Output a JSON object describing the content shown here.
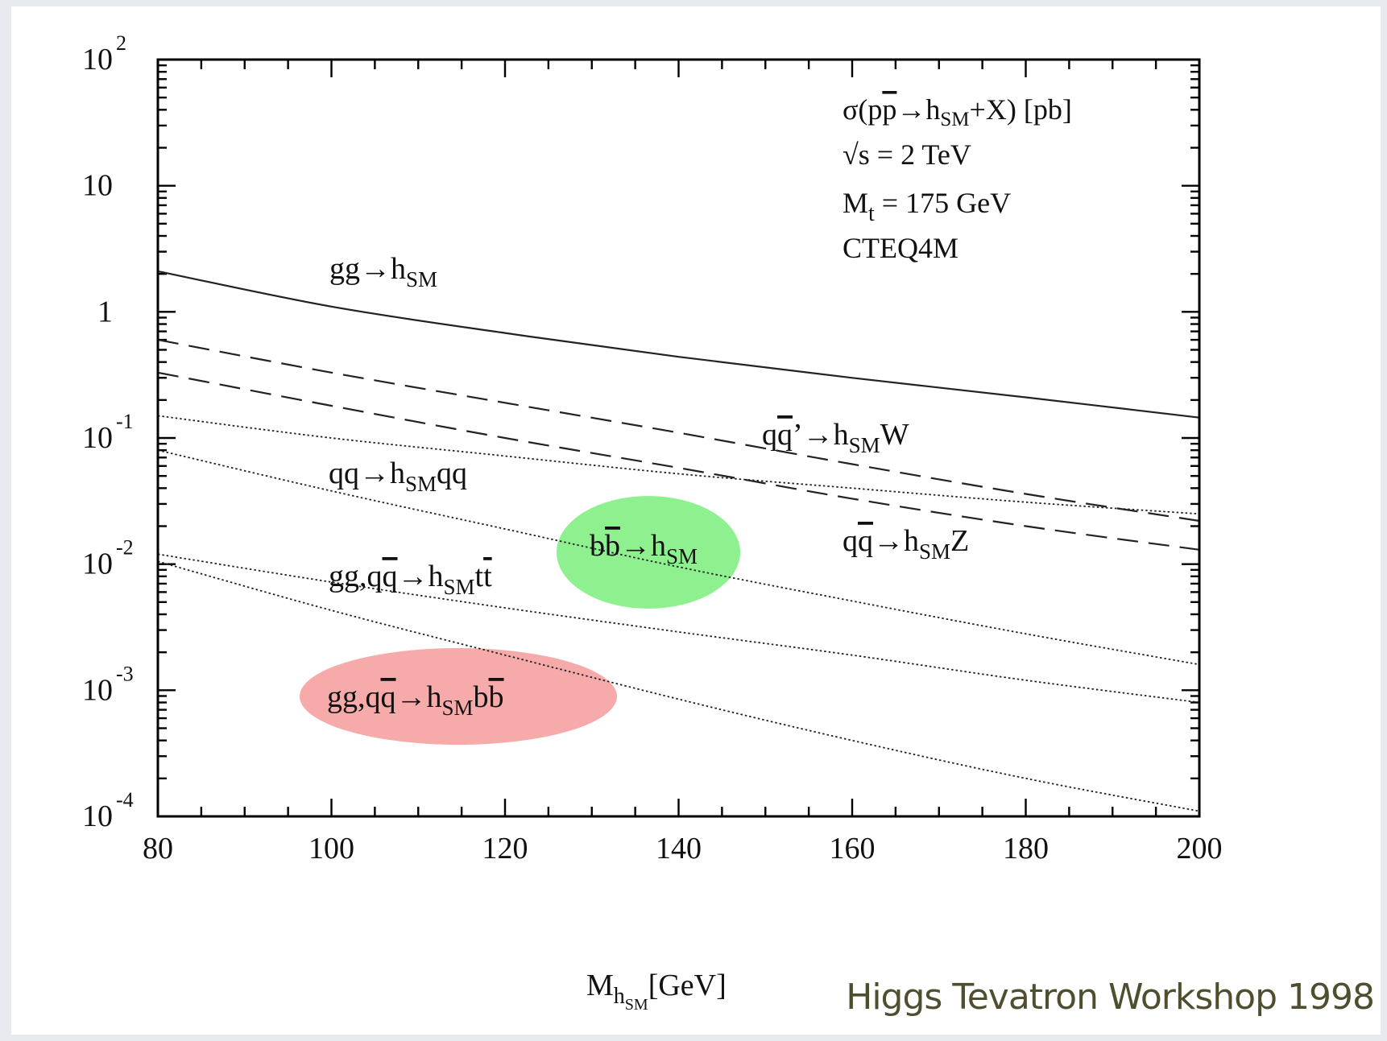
{
  "chart_data": {
    "type": "line",
    "xlim": [
      80,
      200
    ],
    "ylim": [
      0.0001,
      100
    ],
    "yscale": "log",
    "xticks": [
      "80",
      "100",
      "120",
      "140",
      "160",
      "180",
      "200"
    ],
    "yticks": [
      {
        "value": 100,
        "base": "10",
        "exp": "2"
      },
      {
        "value": 10,
        "base": "10",
        "exp": ""
      },
      {
        "value": 1,
        "base": "1",
        "exp": ""
      },
      {
        "value": 0.1,
        "base": "10",
        "exp": "-1"
      },
      {
        "value": 0.01,
        "base": "10",
        "exp": "-2"
      },
      {
        "value": 0.001,
        "base": "10",
        "exp": "-3"
      },
      {
        "value": 0.0001,
        "base": "10",
        "exp": "-4"
      }
    ],
    "xlabel": {
      "main": "M",
      "sub": "h",
      "subsub": "SM",
      "unit": "[GeV]"
    },
    "info": [
      "σ(pp̄→h_SM+X) [pb]",
      "√s = 2 TeV",
      "M_t = 175 GeV",
      "CTEQ4M"
    ],
    "series": [
      {
        "name": "gg→h_SM",
        "style": "solid",
        "x": [
          80,
          100,
          120,
          140,
          160,
          180,
          200
        ],
        "y": [
          2.1,
          1.1,
          0.68,
          0.44,
          0.3,
          0.21,
          0.145
        ]
      },
      {
        "name": "qq̄’→h_SM W",
        "style": "dashed",
        "x": [
          80,
          100,
          120,
          140,
          160,
          180,
          200
        ],
        "y": [
          0.6,
          0.33,
          0.19,
          0.11,
          0.062,
          0.036,
          0.022
        ]
      },
      {
        "name": "qq̄→h_SM Z",
        "style": "dashed",
        "x": [
          80,
          100,
          120,
          140,
          160,
          180,
          200
        ],
        "y": [
          0.33,
          0.18,
          0.1,
          0.058,
          0.033,
          0.02,
          0.013
        ]
      },
      {
        "name": "qq→h_SM qq",
        "style": "dotted",
        "x": [
          80,
          100,
          120,
          140,
          160,
          180,
          200
        ],
        "y": [
          0.15,
          0.1,
          0.072,
          0.052,
          0.04,
          0.031,
          0.025
        ]
      },
      {
        "name": "bb̄→h_SM",
        "style": "dotted",
        "x": [
          80,
          100,
          120,
          140,
          160,
          180,
          200
        ],
        "y": [
          0.08,
          0.038,
          0.019,
          0.0095,
          0.0051,
          0.0028,
          0.0016
        ]
      },
      {
        "name": "gg,qq̄→h_SM tt̄",
        "style": "dotted",
        "x": [
          80,
          100,
          120,
          140,
          160,
          180,
          200
        ],
        "y": [
          0.012,
          0.0072,
          0.0045,
          0.0029,
          0.0019,
          0.0012,
          0.0008
        ]
      },
      {
        "name": "gg,qq̄→h_SM bb̄",
        "style": "dotted",
        "x": [
          80,
          100,
          120,
          140,
          160,
          180,
          200
        ],
        "y": [
          0.0105,
          0.0043,
          0.0019,
          0.00085,
          0.0004,
          0.0002,
          0.00011
        ]
      }
    ],
    "highlights": [
      {
        "series": "bb̄→h_SM",
        "color": "#8ff08f"
      },
      {
        "series": "gg,qq̄→h_SM bb̄",
        "color": "#f6aaaa"
      }
    ]
  },
  "credit": "Higgs Tevatron Workshop 1998"
}
